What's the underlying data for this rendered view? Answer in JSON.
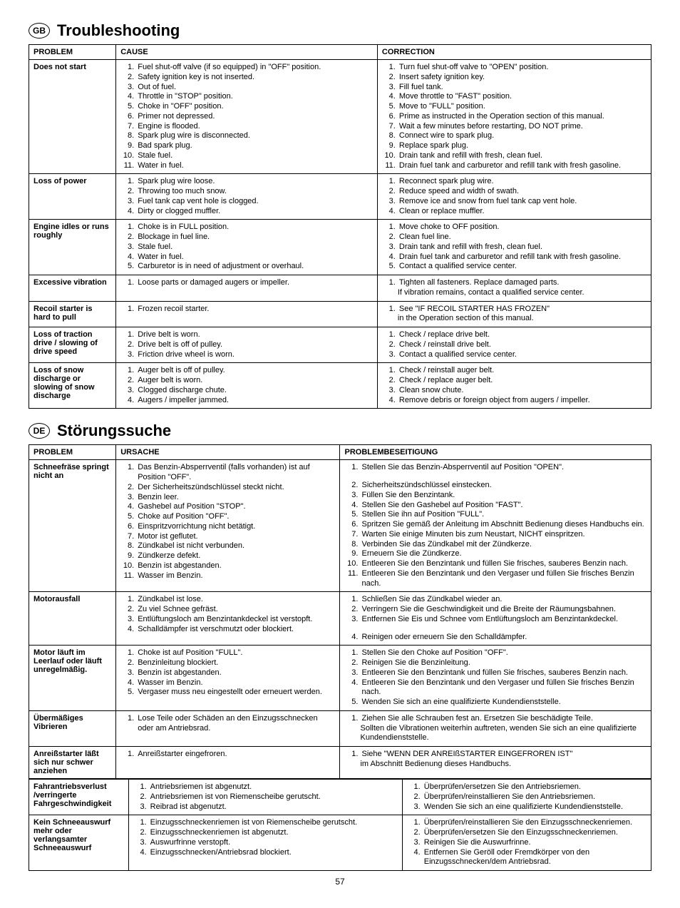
{
  "page_number": "57",
  "sections": [
    {
      "lang_badge": "GB",
      "title": "Troubleshooting",
      "headers": [
        "PROBLEM",
        "CAUSE",
        "CORRECTION"
      ],
      "col_classes": [
        "col-problem",
        "col-cause",
        "col-correction"
      ],
      "rows": [
        {
          "problem": "Does not start",
          "cause": [
            "Fuel shut-off valve (if so equipped) in \"OFF\" position.",
            "Safety ignition key is not inserted.",
            "Out of fuel.",
            "Throttle in \"STOP\" position.",
            "Choke in \"OFF\" position.",
            "Primer not depressed.",
            "Engine is flooded.",
            "Spark plug wire is disconnected.",
            "Bad spark plug.",
            "Stale fuel.",
            "Water in fuel."
          ],
          "correction": [
            "Turn fuel shut-off valve to \"OPEN\" position.",
            "Insert safety ignition key.",
            "Fill fuel tank.",
            "Move throttle to \"FAST\" position.",
            "Move to \"FULL\" position.",
            "Prime as instructed in the Operation section of this manual.",
            "Wait a few minutes before restarting, DO NOT prime.",
            "Connect wire to spark plug.",
            "Replace spark plug.",
            "Drain tank and refill with fresh, clean fuel.",
            "Drain fuel tank and carburetor and refill tank with fresh gasoline."
          ]
        },
        {
          "problem": "Loss of power",
          "cause": [
            "Spark plug wire loose.",
            "Throwing too much snow.",
            "Fuel tank cap vent hole is clogged.",
            "Dirty or clogged muffler."
          ],
          "correction": [
            "Reconnect spark plug wire.",
            "Reduce speed and width of swath.",
            "Remove ice and snow from fuel tank cap vent hole.",
            "Clean or replace muffler."
          ]
        },
        {
          "problem": "Engine idles or runs roughly",
          "cause": [
            "Choke is in FULL position.",
            "Blockage in fuel line.",
            "Stale fuel.",
            "Water in fuel.",
            "Carburetor is in need of adjustment or overhaul."
          ],
          "correction": [
            "Move choke to OFF position.",
            "Clean fuel line.",
            "Drain tank and refill with fresh, clean fuel.",
            "Drain fuel tank and carburetor and refill tank with fresh gasoline.",
            "Contact a qualified service center."
          ]
        },
        {
          "problem": "Excessive vibration",
          "cause": [
            "Loose parts or damaged augers or impeller."
          ],
          "correction": [
            "Tighten all fasteners.  Replace damaged parts."
          ],
          "correction_note": "If vibration remains, contact a qualified service center."
        },
        {
          "problem": "Recoil starter is hard to pull",
          "cause": [
            "Frozen recoil starter."
          ],
          "correction": [
            "See \"IF RECOIL STARTER HAS FROZEN\""
          ],
          "correction_note": "in the Operation section of this manual."
        },
        {
          "problem": "Loss of traction drive / slowing of drive speed",
          "cause": [
            "Drive belt is worn.",
            "Drive belt is off of pulley.",
            "Friction drive wheel is worn."
          ],
          "correction": [
            "Check / replace drive belt.",
            "Check / reinstall drive belt.",
            "Contact a qualified service center."
          ]
        },
        {
          "problem": "Loss of snow discharge or slowing of snow discharge",
          "cause": [
            "Auger belt is off of pulley.",
            "Auger belt is worn.",
            "Clogged discharge chute.",
            "Augers / impeller jammed."
          ],
          "correction": [
            "Check / reinstall auger belt.",
            "Check / replace auger belt.",
            "Clean snow chute.",
            "Remove debris or foreign object from augers / impeller."
          ]
        }
      ]
    },
    {
      "lang_badge": "DE",
      "title": "Störungssuche",
      "headers": [
        "PROBLEM",
        "URSACHE",
        "PROBLEMBESEITIGUNG"
      ],
      "col_classes": [
        "col-problem-de",
        "col-cause-de",
        "col-correction-de"
      ],
      "rows": [
        {
          "problem": "Schneefräse springt nicht an",
          "cause": [
            "Das Benzin-Absperrventil (falls vorhanden) ist auf Position \"OFF\".",
            "Der Sicherheitszündschlüssel steckt nicht.",
            "Benzin leer.",
            "Gashebel auf Position \"STOP\".",
            "Choke auf Position \"OFF\".",
            "Einspritzvorrichtung nicht betätigt.",
            "Motor ist geflutet.",
            "Zündkabel ist nicht verbunden.",
            "Zündkerze defekt.",
            "Benzin ist abgestanden.",
            "Wasser im Benzin."
          ],
          "correction": [
            "Stellen Sie das Benzin-Absperrventil auf Position \"OPEN\".",
            "Sicherheitszündschlüssel einstecken.",
            "Füllen Sie den Benzintank.",
            "Stellen Sie den Gashebel auf Position \"FAST\".",
            "Stellen Sie ihn auf Position \"FULL\".",
            "Spritzen Sie gemäß der Anleitung im Abschnitt Bedienung dieses Handbuchs ein.",
            "Warten Sie einige Minuten bis zum Neustart, NICHT einspritzen.",
            "Verbinden Sie das Zündkabel mit der Zündkerze.",
            "Erneuern Sie die Zündkerze.",
            "Entleeren Sie den Benzintank und füllen Sie frisches, sauberes Benzin nach.",
            "Entleeren Sie den Benzintank und den Vergaser und füllen Sie frisches Benzin nach."
          ],
          "correction_first_blank_after": true
        },
        {
          "problem": "Motorausfall",
          "cause": [
            "Zündkabel ist lose.",
            "Zu viel Schnee gefräst.",
            "Entlüftungsloch am Benzintankdeckel ist verstopft.",
            "Schalldämpfer ist verschmutzt oder blockiert."
          ],
          "correction": [
            "Schließen Sie das Zündkabel wieder an.",
            "Verringern Sie die Geschwindigkeit und die Breite der Räumungsbahnen.",
            "Entfernen Sie Eis und Schnee vom Entlüftungsloch am Benzintankdeckel.",
            "Reinigen oder erneuern Sie den Schalldämpfer."
          ],
          "correction_blank_after_index": 2
        },
        {
          "problem": "Motor läuft im Leerlauf oder läuft unregelmäßig.",
          "cause": [
            "Choke ist auf Position \"FULL\".",
            "Benzinleitung blockiert.",
            "Benzin ist abgestanden.",
            "Wasser im Benzin.",
            "Vergaser muss neu eingestellt oder erneuert werden."
          ],
          "correction": [
            "Stellen Sie den Choke auf Position \"OFF\".",
            "Reinigen Sie die Benzinleitung.",
            "Entleeren Sie den Benzintank und füllen Sie frisches, sauberes Benzin nach.",
            "Entleeren Sie den Benzintank und den Vergaser und füllen Sie frisches Benzin nach.",
            "Wenden Sie sich an eine qualifizierte Kundendienststelle."
          ]
        },
        {
          "problem": "Übermäßiges Vibrieren",
          "cause": [
            "Lose Teile oder Schäden an den Einzugsschnecken oder am Antriebsrad."
          ],
          "correction": [
            "Ziehen Sie alle Schrauben fest an.  Ersetzen Sie beschädigte Teile."
          ],
          "correction_note": "Sollten die Vibrationen weiterhin auftreten, wenden Sie sich an eine qualifizierte Kundendienststelle."
        },
        {
          "problem": "Anreißstarter läßt sich nur schwer anziehen",
          "cause": [
            "Anreißstarter eingefroren."
          ],
          "correction": [
            "Siehe \"WENN DER ANREIßSTARTER EINGEFROREN IST\""
          ],
          "correction_note": "im Abschnitt Bedienung dieses Handbuchs."
        }
      ],
      "rows2": [
        {
          "problem": "Fahrantriebsverlust /verringerte Fahrgeschwindigkeit",
          "cause": [
            "Antriebsriemen ist abgenutzt.",
            "Antriebsriemen ist von Riemenscheibe gerutscht.",
            "Reibrad ist abgenutzt."
          ],
          "correction": [
            "Überprüfen/ersetzen Sie den Antriebsriemen.",
            "Überprüfen/reinstallieren Sie den Antriebsriemen.",
            "Wenden Sie sich an eine qualifizierte Kundendienststelle."
          ]
        },
        {
          "problem": "Kein Schneeauswurf mehr oder verlangsamter Schneeauswurf",
          "cause": [
            "Einzugsschneckenriemen ist von Riemenscheibe gerutscht.",
            "Einzugsschneckenriemen ist abgenutzt.",
            "Auswurfrinne verstopft.",
            "Einzugsschnecken/Antriebsrad blockiert."
          ],
          "correction": [
            "Überprüfen/reinstallieren Sie den Einzugsschneckenriemen.",
            "Überprüfen/ersetzen Sie den Einzugsschneckenriemen.",
            "Reinigen Sie die Auswurfrinne.",
            "Entfernen Sie Geröll oder Fremdkörper von den Einzugsschnecken/dem Antriebsrad."
          ]
        }
      ]
    }
  ]
}
